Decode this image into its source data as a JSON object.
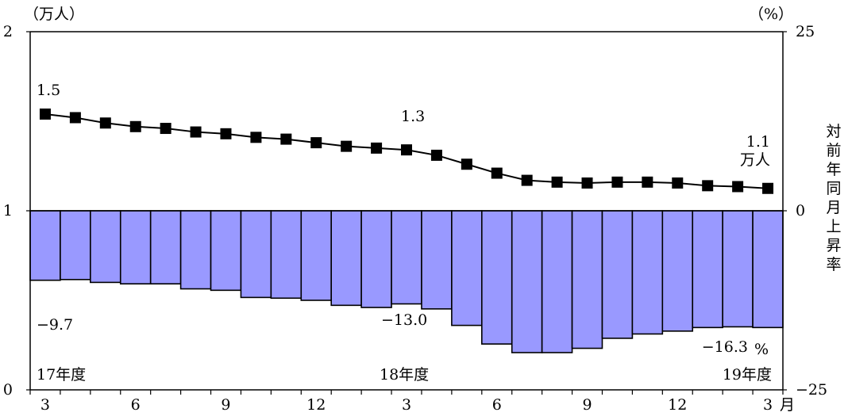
{
  "chart_data": {
    "type": "bar+line",
    "left_axis": {
      "unit_label": "（万人）",
      "ticks": [
        "0",
        "1",
        "2"
      ],
      "range": [
        0,
        2
      ]
    },
    "right_axis": {
      "unit_label": "（%）",
      "ticks": [
        "−25",
        "0",
        "25"
      ],
      "range": [
        -25,
        25
      ],
      "title_chars": [
        "対",
        "前",
        "年",
        "同",
        "月",
        "上",
        "昇",
        "率"
      ]
    },
    "x_tick_labels": [
      "3",
      "6",
      "9",
      "12",
      "3",
      "6",
      "9",
      "12",
      "3"
    ],
    "x_tick_indices": [
      0,
      3,
      6,
      9,
      12,
      15,
      18,
      21,
      24
    ],
    "x_unit_label": "月",
    "fiscal_year_labels": [
      {
        "text": "17年度",
        "index": 0
      },
      {
        "text": "18年度",
        "index": 12
      },
      {
        "text": "19年度",
        "index": 24
      }
    ],
    "line_series": {
      "name": "万人",
      "values": [
        1.54,
        1.52,
        1.49,
        1.47,
        1.46,
        1.44,
        1.43,
        1.41,
        1.4,
        1.38,
        1.36,
        1.35,
        1.34,
        1.31,
        1.26,
        1.21,
        1.17,
        1.16,
        1.155,
        1.16,
        1.16,
        1.155,
        1.14,
        1.135,
        1.125
      ]
    },
    "bar_series": {
      "name": "%",
      "values": [
        -9.7,
        -9.6,
        -10.0,
        -10.2,
        -10.2,
        -10.9,
        -11.1,
        -12.1,
        -12.2,
        -12.5,
        -13.2,
        -13.5,
        -13.0,
        -13.7,
        -16.0,
        -18.6,
        -19.8,
        -19.8,
        -19.2,
        -17.8,
        -17.2,
        -16.8,
        -16.3,
        -16.2,
        -16.3
      ]
    },
    "annotations": {
      "line_first": "1.5",
      "line_mid": "1.3",
      "line_last": "1.1",
      "line_last_unit": "万人",
      "bar_first": "−9.7",
      "bar_mid": "−13.0",
      "bar_last": "−16.3",
      "bar_last_unit": "%"
    }
  }
}
